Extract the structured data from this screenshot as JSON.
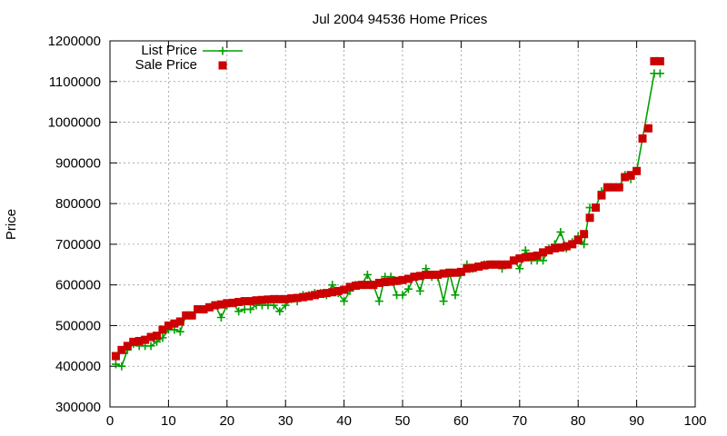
{
  "chart_data": {
    "type": "scatter",
    "title": "Jul 2004 94536 Home Prices",
    "xlabel": "",
    "ylabel": "Price",
    "xlim": [
      0,
      100
    ],
    "ylim": [
      300000,
      1200000
    ],
    "xticks": [
      0,
      10,
      20,
      30,
      40,
      50,
      60,
      70,
      80,
      90,
      100
    ],
    "yticks": [
      300000,
      400000,
      500000,
      600000,
      700000,
      800000,
      900000,
      1000000,
      1100000,
      1200000
    ],
    "grid": true,
    "legend_position": "top-left",
    "series": [
      {
        "name": "List Price",
        "style": "linespoints",
        "marker": "plus",
        "color": "#00a000",
        "x": [
          1,
          2,
          3,
          4,
          5,
          6,
          7,
          8,
          9,
          10,
          11,
          12,
          13,
          14,
          15,
          16,
          17,
          18,
          19,
          20,
          21,
          22,
          23,
          24,
          25,
          26,
          27,
          28,
          29,
          30,
          31,
          32,
          33,
          34,
          35,
          36,
          37,
          38,
          39,
          40,
          41,
          42,
          43,
          44,
          45,
          46,
          47,
          48,
          49,
          50,
          51,
          52,
          53,
          54,
          55,
          56,
          57,
          58,
          59,
          60,
          61,
          62,
          63,
          64,
          65,
          66,
          67,
          68,
          69,
          70,
          71,
          72,
          73,
          74,
          75,
          76,
          77,
          78,
          79,
          80,
          81,
          82,
          83,
          84,
          85,
          86,
          87,
          88,
          89,
          90,
          93,
          94
        ],
        "y": [
          405000,
          400000,
          440000,
          455000,
          450000,
          450000,
          450000,
          460000,
          470000,
          490000,
          490000,
          485000,
          525000,
          525000,
          540000,
          540000,
          545000,
          550000,
          520000,
          550000,
          555000,
          535000,
          540000,
          540000,
          550000,
          550000,
          550000,
          550000,
          535000,
          550000,
          565000,
          560000,
          575000,
          575000,
          580000,
          580000,
          575000,
          600000,
          580000,
          560000,
          585000,
          600000,
          600000,
          625000,
          600000,
          560000,
          620000,
          620000,
          575000,
          575000,
          590000,
          620000,
          585000,
          640000,
          620000,
          620000,
          560000,
          630000,
          575000,
          630000,
          650000,
          640000,
          645000,
          650000,
          650000,
          650000,
          640000,
          650000,
          660000,
          640000,
          685000,
          660000,
          660000,
          660000,
          690000,
          700000,
          730000,
          690000,
          705000,
          720000,
          700000,
          790000,
          790000,
          830000,
          840000,
          840000,
          840000,
          870000,
          860000,
          880000,
          1120000,
          1120000
        ]
      },
      {
        "name": "Sale Price",
        "style": "points",
        "marker": "square",
        "color": "#cc0000",
        "x": [
          1,
          2,
          3,
          4,
          5,
          6,
          7,
          8,
          9,
          10,
          11,
          12,
          13,
          14,
          15,
          16,
          17,
          18,
          19,
          20,
          21,
          22,
          23,
          24,
          25,
          26,
          27,
          28,
          29,
          30,
          31,
          32,
          33,
          34,
          35,
          36,
          37,
          38,
          39,
          40,
          41,
          42,
          43,
          44,
          45,
          46,
          47,
          48,
          49,
          50,
          51,
          52,
          53,
          54,
          55,
          56,
          57,
          58,
          59,
          60,
          61,
          62,
          63,
          64,
          65,
          66,
          67,
          68,
          69,
          70,
          71,
          72,
          73,
          74,
          75,
          76,
          77,
          78,
          79,
          80,
          81,
          82,
          83,
          84,
          85,
          86,
          87,
          88,
          89,
          90,
          91,
          92,
          93,
          94
        ],
        "y": [
          425000,
          440000,
          450000,
          460000,
          462000,
          465000,
          472000,
          475000,
          490000,
          500000,
          505000,
          510000,
          525000,
          525000,
          540000,
          540000,
          545000,
          550000,
          552000,
          555000,
          556000,
          558000,
          560000,
          560000,
          562000,
          563000,
          564000,
          565000,
          565000,
          565000,
          567000,
          568000,
          570000,
          572000,
          575000,
          578000,
          580000,
          582000,
          585000,
          588000,
          595000,
          598000,
          600000,
          600000,
          600000,
          605000,
          607000,
          608000,
          610000,
          612000,
          615000,
          620000,
          622000,
          625000,
          625000,
          625000,
          628000,
          630000,
          630000,
          632000,
          640000,
          642000,
          645000,
          648000,
          650000,
          650000,
          650000,
          650000,
          660000,
          665000,
          668000,
          670000,
          672000,
          680000,
          685000,
          690000,
          692000,
          695000,
          700000,
          710000,
          725000,
          765000,
          790000,
          820000,
          840000,
          840000,
          840000,
          865000,
          870000,
          880000,
          960000,
          985000,
          1150000,
          1150000
        ]
      }
    ]
  }
}
